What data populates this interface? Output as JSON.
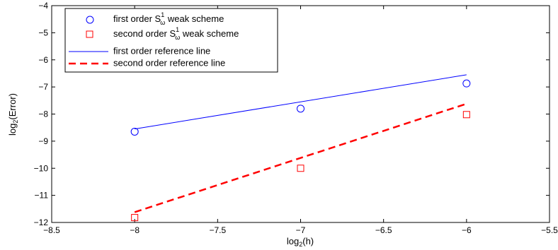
{
  "chart_data": {
    "type": "scatter",
    "xlabel": "log",
    "xlabel_sub": "2",
    "xlabel_rest": "(h)",
    "ylabel": "log",
    "ylabel_sub": "2",
    "ylabel_rest": "(Error)",
    "xlim": [
      -8.5,
      -5.5
    ],
    "ylim": [
      -12,
      -4
    ],
    "xticks": [
      -8.5,
      -8,
      -7.5,
      -7,
      -6.5,
      -6,
      -5.5
    ],
    "yticks": [
      -12,
      -11,
      -10,
      -9,
      -8,
      -7,
      -6,
      -5,
      -4
    ],
    "grid": false,
    "legend_position": "top-left",
    "series": [
      {
        "name": "first order S weak scheme",
        "legend_main": "first order S",
        "legend_sup": "1",
        "legend_sub": "ω",
        "legend_rest": " weak scheme",
        "kind": "markers",
        "marker": "circle",
        "color": "#0000ff",
        "x": [
          -8,
          -7,
          -6
        ],
        "y": [
          -8.65,
          -7.8,
          -6.87
        ]
      },
      {
        "name": "second order S weak scheme",
        "legend_main": "second order S",
        "legend_sup": "1",
        "legend_sub": "ω",
        "legend_rest": " weak scheme",
        "kind": "markers",
        "marker": "square",
        "color": "#ff0000",
        "x": [
          -8,
          -7,
          -6
        ],
        "y": [
          -11.82,
          -10.0,
          -8.02
        ]
      },
      {
        "name": "first order reference line",
        "kind": "line",
        "dash": "solid",
        "color": "#0000ff",
        "x": [
          -8,
          -6
        ],
        "y": [
          -8.55,
          -6.55
        ]
      },
      {
        "name": "second order reference line",
        "kind": "line",
        "dash": "dashed",
        "color": "#ff0000",
        "x": [
          -8,
          -6
        ],
        "y": [
          -11.62,
          -7.62
        ]
      }
    ]
  }
}
